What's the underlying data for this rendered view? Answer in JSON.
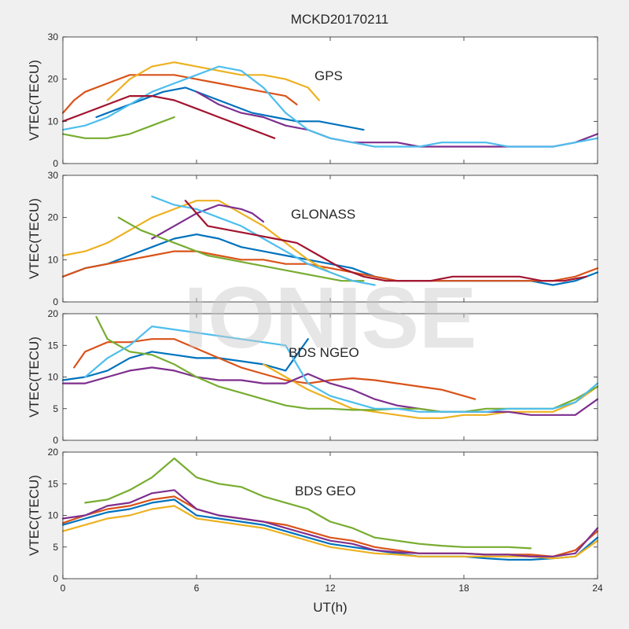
{
  "chart_data": [
    {
      "type": "line",
      "annotation": "GPS",
      "ylabel": "VTEC(TECU)",
      "xlim": [
        0,
        24
      ],
      "ylim": [
        0,
        30
      ],
      "yticks": [
        0,
        10,
        20,
        30
      ],
      "series": [
        {
          "color": "#0072BD",
          "x": [
            1.5,
            2.5,
            3.5,
            4.5,
            5.5,
            6.5,
            7.5,
            8.5,
            9.5,
            10.5,
            11.5,
            12.5,
            13.5
          ],
          "y": [
            11,
            13,
            15,
            17,
            18,
            16,
            14,
            12,
            11,
            10,
            10,
            9,
            8
          ]
        },
        {
          "color": "#D95319",
          "x": [
            0,
            0.5,
            1,
            2,
            3,
            4,
            5,
            6,
            7,
            8,
            9,
            10,
            10.5
          ],
          "y": [
            12,
            15,
            17,
            19,
            21,
            21,
            21,
            20,
            19,
            18,
            17,
            16,
            14
          ]
        },
        {
          "color": "#EDB120",
          "x": [
            2,
            3,
            4,
            5,
            6,
            7,
            8,
            9,
            10,
            11,
            11.5
          ],
          "y": [
            15,
            20,
            23,
            24,
            23,
            22,
            21,
            21,
            20,
            18,
            15
          ]
        },
        {
          "color": "#7E2F8E",
          "x": [
            6,
            7,
            8,
            9,
            10,
            11,
            12,
            13,
            14,
            15,
            16,
            17,
            18,
            19,
            20,
            21,
            22,
            23,
            24
          ],
          "y": [
            17,
            14,
            12,
            11,
            9,
            8,
            6,
            5,
            5,
            5,
            4,
            4,
            4,
            4,
            4,
            4,
            4,
            5,
            7
          ]
        },
        {
          "color": "#77AC30",
          "x": [
            0,
            1,
            2,
            3,
            4,
            5
          ],
          "y": [
            7,
            6,
            6,
            7,
            9,
            11
          ]
        },
        {
          "color": "#4DBEEE",
          "x": [
            0,
            1,
            2,
            3,
            4,
            5,
            6,
            7,
            8,
            9,
            10,
            11,
            12,
            13,
            14,
            15,
            16,
            17,
            18,
            19,
            20,
            21,
            22,
            23,
            24
          ],
          "y": [
            8,
            9,
            11,
            14,
            17,
            19,
            21,
            23,
            22,
            18,
            12,
            8,
            6,
            5,
            4,
            4,
            4,
            5,
            5,
            5,
            4,
            4,
            4,
            5,
            6
          ]
        },
        {
          "color": "#A2142F",
          "x": [
            0,
            1,
            2,
            3,
            4,
            5,
            6,
            7,
            8,
            9,
            9.5
          ],
          "y": [
            10,
            12,
            14,
            16,
            16,
            15,
            13,
            11,
            9,
            7,
            6
          ]
        }
      ]
    },
    {
      "type": "line",
      "annotation": "GLONASS",
      "ylabel": "VTEC(TECU)",
      "xlim": [
        0,
        24
      ],
      "ylim": [
        0,
        30
      ],
      "yticks": [
        0,
        10,
        20,
        30
      ],
      "series": [
        {
          "color": "#0072BD",
          "x": [
            0,
            1,
            2,
            3,
            4,
            5,
            6,
            7,
            8,
            9,
            10,
            11,
            12,
            13,
            14,
            15,
            16,
            17,
            18,
            19,
            20,
            21,
            22,
            23,
            24
          ],
          "y": [
            6,
            8,
            9,
            11,
            13,
            15,
            16,
            15,
            13,
            12,
            11,
            10,
            9,
            8,
            6,
            5,
            5,
            5,
            5,
            5,
            5,
            5,
            4,
            5,
            7
          ]
        },
        {
          "color": "#D95319",
          "x": [
            0,
            1,
            2,
            3,
            4,
            5,
            6,
            7,
            8,
            9,
            10,
            11,
            12,
            13,
            14,
            15,
            16,
            17,
            18,
            19,
            20,
            21,
            22,
            23,
            24
          ],
          "y": [
            6,
            8,
            9,
            10,
            11,
            12,
            12,
            11,
            10,
            10,
            9,
            9,
            8,
            7,
            6,
            5,
            5,
            5,
            5,
            5,
            5,
            5,
            5,
            6,
            8
          ]
        },
        {
          "color": "#EDB120",
          "x": [
            0,
            1,
            2,
            3,
            4,
            5,
            6,
            7,
            8,
            9,
            10,
            11,
            12,
            13
          ],
          "y": [
            11,
            12,
            14,
            17,
            20,
            22,
            24,
            24,
            21,
            18,
            14,
            10,
            7,
            5
          ]
        },
        {
          "color": "#7E2F8E",
          "x": [
            4,
            5,
            6,
            7,
            8,
            8.5,
            9
          ],
          "y": [
            15,
            18,
            21,
            23,
            22,
            21,
            19
          ]
        },
        {
          "color": "#77AC30",
          "x": [
            2.5,
            3.5,
            4.5,
            5.5,
            6.5,
            7.5,
            8.5,
            9.5,
            10.5,
            11.5,
            12.5,
            13.5
          ],
          "y": [
            20,
            17,
            15,
            13,
            11,
            10,
            9,
            8,
            7,
            6,
            5,
            5
          ]
        },
        {
          "color": "#4DBEEE",
          "x": [
            4,
            5,
            6,
            7,
            8,
            9,
            10,
            11,
            12,
            13,
            14
          ],
          "y": [
            25,
            23,
            22,
            20,
            18,
            15,
            12,
            9,
            7,
            5,
            4
          ]
        },
        {
          "color": "#A2142F",
          "x": [
            5.5,
            6.5,
            7.5,
            8.5,
            9.5,
            10.5,
            11.5,
            12.5,
            13.5,
            14.5,
            15.5,
            16.5,
            17.5,
            18.5,
            19.5,
            20.5,
            21.5,
            22.5,
            23.5
          ],
          "y": [
            24,
            18,
            17,
            16,
            15,
            14,
            11,
            8,
            6,
            5,
            5,
            5,
            6,
            6,
            6,
            6,
            5,
            5,
            6
          ]
        }
      ]
    },
    {
      "type": "line",
      "annotation": "BDS NGEO",
      "ylabel": "VTEC(TECU)",
      "xlim": [
        0,
        24
      ],
      "ylim": [
        0,
        20
      ],
      "yticks": [
        0,
        5,
        10,
        15,
        20
      ],
      "series": [
        {
          "color": "#0072BD",
          "x": [
            0,
            1,
            2,
            3,
            4,
            5,
            6,
            7,
            8,
            9,
            10,
            11
          ],
          "y": [
            9.5,
            10,
            11,
            13,
            14,
            13.5,
            13,
            13,
            12.5,
            12,
            11,
            16
          ]
        },
        {
          "color": "#D95319",
          "x": [
            0.5,
            1,
            2,
            3,
            4,
            5,
            6,
            7,
            8,
            9,
            10,
            11,
            12,
            13,
            14,
            15,
            16,
            17,
            18,
            18.5
          ],
          "y": [
            11.5,
            14,
            15.5,
            15.5,
            16,
            16,
            14.5,
            13,
            11.5,
            10.5,
            9.5,
            9,
            9.5,
            9.8,
            9.5,
            9,
            8.5,
            8,
            7,
            6.5
          ]
        },
        {
          "color": "#EDB120",
          "x": [
            9,
            10,
            11,
            12,
            13,
            14,
            15,
            16,
            17,
            18,
            19,
            20,
            21,
            22,
            23,
            24
          ],
          "y": [
            12,
            10,
            8,
            6.5,
            5,
            4.5,
            4,
            3.5,
            3.5,
            4,
            4,
            4.5,
            4.5,
            4.5,
            6,
            8.5
          ]
        },
        {
          "color": "#7E2F8E",
          "x": [
            0,
            1,
            2,
            3,
            4,
            5,
            6,
            7,
            8,
            9,
            10,
            11,
            12,
            13,
            14,
            15,
            16,
            17,
            18,
            19,
            20,
            21,
            22,
            23,
            24
          ],
          "y": [
            9,
            9,
            10,
            11,
            11.5,
            11,
            10,
            9.5,
            9.5,
            9,
            9,
            10.5,
            9,
            8,
            6.5,
            5.5,
            5,
            4.5,
            4.5,
            4.5,
            4.5,
            4,
            4,
            4,
            6.5
          ]
        },
        {
          "color": "#77AC30",
          "x": [
            1.5,
            2,
            2.5,
            3,
            4,
            5,
            6,
            7,
            8,
            9,
            10,
            11,
            12,
            13,
            14,
            15,
            16,
            17,
            18,
            19,
            20,
            21,
            22,
            23,
            24
          ],
          "y": [
            19.5,
            16,
            15,
            14,
            13.5,
            12,
            10,
            8.5,
            7.5,
            6.5,
            5.5,
            5,
            5,
            4.8,
            4.8,
            5,
            5,
            4.5,
            4.5,
            5,
            5,
            5,
            5,
            6.5,
            8.5
          ]
        },
        {
          "color": "#4DBEEE",
          "x": [
            1,
            2,
            3,
            4,
            10,
            10.5,
            11,
            12,
            13,
            14,
            15,
            16,
            17,
            18,
            19,
            20,
            21,
            22,
            23,
            24
          ],
          "y": [
            10,
            13,
            15,
            18,
            15,
            12,
            9,
            7,
            6,
            5,
            5,
            4.5,
            4.5,
            4.5,
            4.5,
            5,
            5,
            5,
            6,
            9
          ]
        }
      ]
    },
    {
      "type": "line",
      "annotation": "BDS GEO",
      "ylabel": "VTEC(TECU)",
      "xlabel": "UT(h)",
      "xlim": [
        0,
        24
      ],
      "ylim": [
        0,
        20
      ],
      "yticks": [
        0,
        5,
        10,
        15,
        20
      ],
      "xticks": [
        0,
        6,
        12,
        18,
        24
      ],
      "series": [
        {
          "color": "#0072BD",
          "x": [
            0,
            1,
            2,
            3,
            4,
            5,
            6,
            7,
            8,
            9,
            10,
            11,
            12,
            13,
            14,
            15,
            16,
            17,
            18,
            19,
            20,
            21,
            22,
            23,
            24
          ],
          "y": [
            8.5,
            9.5,
            10.5,
            11,
            12,
            12.5,
            10,
            9.5,
            9,
            8.5,
            7.5,
            6.5,
            5.5,
            5,
            4.5,
            4,
            3.5,
            3.5,
            3.5,
            3.2,
            3,
            3,
            3.2,
            3.5,
            6.5
          ]
        },
        {
          "color": "#D95319",
          "x": [
            0,
            1,
            2,
            3,
            4,
            5,
            6,
            7,
            8,
            9,
            10,
            11,
            12,
            13,
            14,
            15,
            16,
            17,
            18,
            19,
            20,
            21,
            22,
            23,
            24
          ],
          "y": [
            8.8,
            10,
            11,
            11.5,
            12.5,
            13,
            11,
            10,
            9.5,
            9,
            8.5,
            7.5,
            6.5,
            6,
            5,
            4.5,
            4,
            4,
            4,
            3.8,
            3.8,
            3.8,
            3.5,
            4.5,
            7.5
          ]
        },
        {
          "color": "#EDB120",
          "x": [
            0,
            1,
            2,
            3,
            4,
            5,
            6,
            7,
            8,
            9,
            10,
            11,
            12,
            13,
            14,
            15,
            16,
            17,
            18,
            19,
            20,
            21,
            22,
            23,
            24
          ],
          "y": [
            7.5,
            8.5,
            9.5,
            10,
            11,
            11.5,
            9.5,
            9,
            8.5,
            8,
            7,
            6,
            5,
            4.5,
            4,
            3.8,
            3.5,
            3.5,
            3.5,
            3.5,
            3.5,
            3.5,
            3.2,
            3.5,
            6
          ]
        },
        {
          "color": "#7E2F8E",
          "x": [
            0,
            1,
            2,
            3,
            4,
            5,
            6,
            7,
            8,
            9,
            10,
            11,
            12,
            13,
            14,
            15,
            16,
            17,
            18,
            19,
            20,
            21,
            22,
            23,
            24
          ],
          "y": [
            9.5,
            10,
            11.5,
            12,
            13.5,
            14,
            11,
            10,
            9.5,
            9,
            8,
            7,
            6,
            5.5,
            4.5,
            4.2,
            4,
            4,
            4,
            3.8,
            3.8,
            3.5,
            3.5,
            4,
            8
          ]
        },
        {
          "color": "#77AC30",
          "x": [
            1,
            2,
            3,
            4,
            5,
            6,
            7,
            8,
            9,
            10,
            11,
            12,
            13,
            14,
            15,
            16,
            17,
            18,
            19,
            20,
            21
          ],
          "y": [
            12,
            12.5,
            14,
            16,
            19,
            16,
            15,
            14.5,
            13,
            12,
            11,
            9,
            8,
            6.5,
            6,
            5.5,
            5.2,
            5,
            5,
            5,
            4.8
          ]
        }
      ]
    }
  ],
  "figure": {
    "title": "MCKD20170211",
    "xlabel": "UT(h)",
    "watermark": "IONISE",
    "xticks": [
      0,
      6,
      12,
      18,
      24
    ]
  }
}
